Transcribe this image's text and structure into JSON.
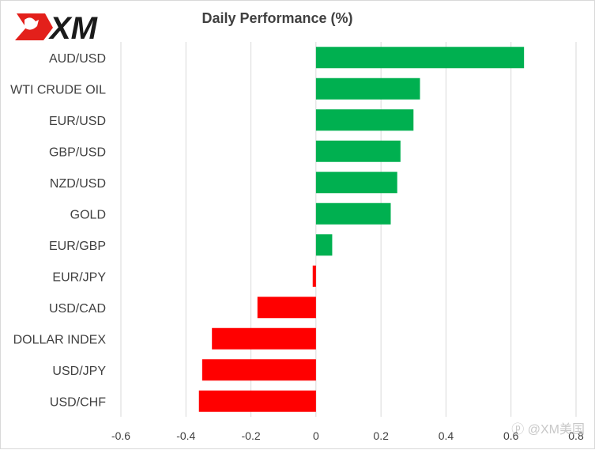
{
  "header": {
    "logo_text": "XM",
    "watermark": "@XM美国"
  },
  "colors": {
    "positive": "#00b050",
    "negative": "#ff0000",
    "grid": "#d9d9d9",
    "logo_red": "#e3201b",
    "logo_text": "#1a1a1a"
  },
  "chart_data": {
    "type": "bar",
    "orientation": "horizontal",
    "title": "Daily Performance (%)",
    "categories": [
      "AUD/USD",
      "WTI CRUDE OIL",
      "EUR/USD",
      "GBP/USD",
      "NZD/USD",
      "GOLD",
      "EUR/GBP",
      "EUR/JPY",
      "USD/CAD",
      "DOLLAR INDEX",
      "USD/JPY",
      "USD/CHF"
    ],
    "values": [
      0.64,
      0.32,
      0.3,
      0.26,
      0.25,
      0.23,
      0.05,
      -0.01,
      -0.18,
      -0.32,
      -0.35,
      -0.36
    ],
    "xlim": [
      -0.6,
      0.8
    ],
    "xticks": [
      -0.6,
      -0.4,
      -0.2,
      0,
      0.2,
      0.4,
      0.6,
      0.8
    ],
    "xtick_labels": [
      "-0.6",
      "-0.4",
      "-0.2",
      "0",
      "0.2",
      "0.4",
      "0.6",
      "0.8"
    ],
    "grid": "vertical",
    "legend": "none"
  }
}
